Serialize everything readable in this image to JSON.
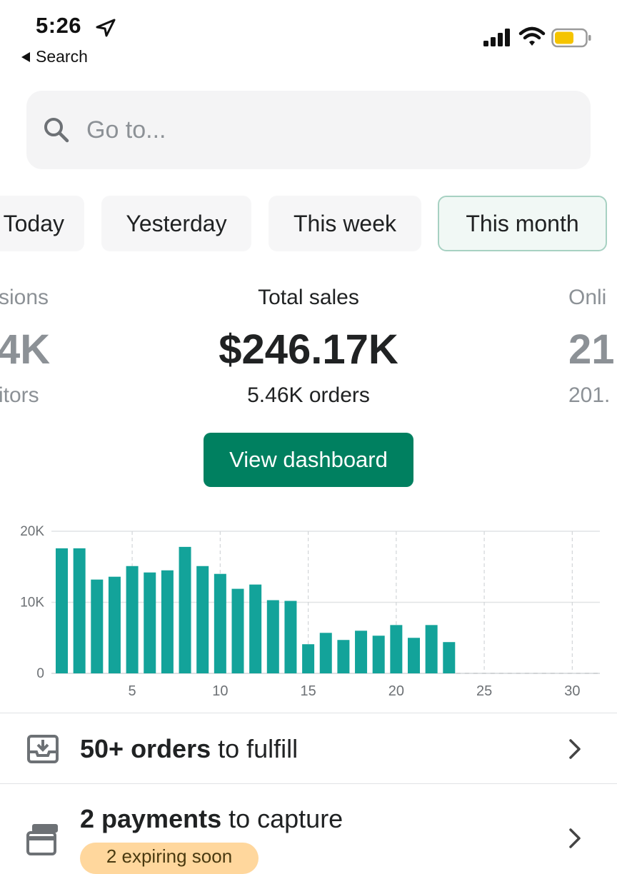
{
  "status_bar": {
    "time": "5:26",
    "back_label": "Search"
  },
  "search": {
    "placeholder": "Go to..."
  },
  "tabs": [
    {
      "label": "Today",
      "active": false
    },
    {
      "label": "Yesterday",
      "active": false
    },
    {
      "label": "This week",
      "active": false
    },
    {
      "label": "This month",
      "active": true
    }
  ],
  "metrics": {
    "left": {
      "label": "sions",
      "value": "4K",
      "sub": "itors"
    },
    "center": {
      "label": "Total sales",
      "value": "$246.17K",
      "sub": "5.46K orders"
    },
    "right": {
      "label": "Onli",
      "value": "21",
      "sub": "201."
    }
  },
  "view_dashboard_label": "View dashboard",
  "chart_data": {
    "type": "bar",
    "x": [
      1,
      2,
      3,
      4,
      5,
      6,
      7,
      8,
      9,
      10,
      11,
      12,
      13,
      14,
      15,
      16,
      17,
      18,
      19,
      20,
      21,
      22,
      23
    ],
    "values": [
      17600,
      17600,
      13200,
      13600,
      15100,
      14200,
      14500,
      17800,
      15100,
      14000,
      11900,
      12500,
      10300,
      10200,
      4100,
      5700,
      4700,
      6000,
      5300,
      6800,
      5000,
      6800,
      4400
    ],
    "xticks": [
      "5",
      "10",
      "15",
      "20",
      "25",
      "30"
    ],
    "yticks": [
      "0",
      "10K",
      "20K"
    ],
    "xlim": [
      1,
      31
    ],
    "ylim": [
      0,
      20000
    ],
    "color": "#13a39a"
  },
  "list": [
    {
      "bold": "50+ orders",
      "rest": " to fulfill",
      "icon": "download-tray-icon"
    },
    {
      "bold": "2 payments",
      "rest": " to capture",
      "icon": "credit-card-icon",
      "badge": "2 expiring soon"
    }
  ]
}
